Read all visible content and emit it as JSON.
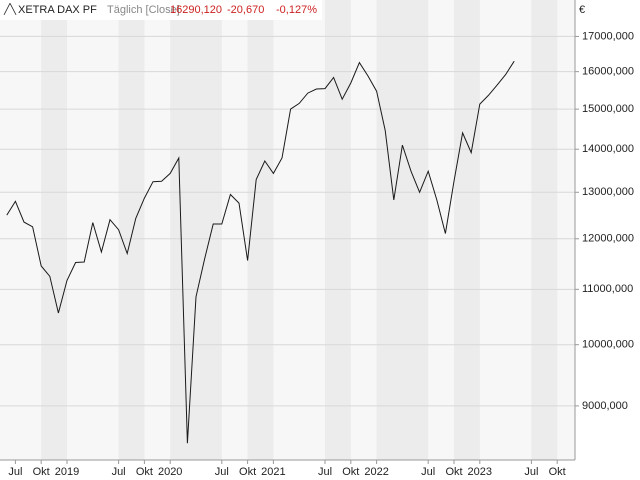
{
  "chart_data": {
    "type": "line",
    "title": "XETRA DAX PF",
    "subtitle": "Täglich [Close]",
    "header_values": [
      "16290,120",
      "-20,670",
      "-0,127%"
    ],
    "y_unit": "€",
    "log_scale": true,
    "grid": true,
    "x": [
      "2018-06",
      "2018-07",
      "2018-08",
      "2018-09",
      "2018-10",
      "2018-11",
      "2018-12",
      "2019-01",
      "2019-02",
      "2019-03",
      "2019-04",
      "2019-05",
      "2019-06",
      "2019-07",
      "2019-08",
      "2019-09",
      "2019-10",
      "2019-11",
      "2019-12",
      "2020-01",
      "2020-02",
      "2020-03",
      "2020-04",
      "2020-05",
      "2020-06",
      "2020-07",
      "2020-08",
      "2020-09",
      "2020-10",
      "2020-11",
      "2020-12",
      "2021-01",
      "2021-02",
      "2021-03",
      "2021-04",
      "2021-05",
      "2021-06",
      "2021-07",
      "2021-08",
      "2021-09",
      "2021-10",
      "2021-11",
      "2021-12",
      "2022-01",
      "2022-02",
      "2022-03",
      "2022-04",
      "2022-05",
      "2022-06",
      "2022-07",
      "2022-08",
      "2022-09",
      "2022-10",
      "2022-11",
      "2022-12",
      "2023-01",
      "2023-02",
      "2023-03",
      "2023-04",
      "2023-05"
    ],
    "series": [
      {
        "name": "XETRA DAX PF",
        "color": "#1a1a1a",
        "values": [
          12500,
          12800,
          12350,
          12250,
          11450,
          11250,
          10560,
          11170,
          11520,
          11530,
          12340,
          11730,
          12400,
          12190,
          11700,
          12430,
          12870,
          13240,
          13250,
          13430,
          13790,
          8440,
          10860,
          11590,
          12310,
          12310,
          12950,
          12760,
          11560,
          13290,
          13720,
          13430,
          13790,
          15000,
          15150,
          15420,
          15530,
          15540,
          15840,
          15260,
          15690,
          16250,
          15880,
          15470,
          14460,
          12830,
          14100,
          13480,
          13000,
          13480,
          12830,
          12110,
          13250,
          14400,
          13920,
          15130,
          15360,
          15630,
          15920,
          16290
        ]
      }
    ],
    "ylim": [
      8200,
      18100
    ],
    "yticks": [
      {
        "value": 9000,
        "label": "9000,000"
      },
      {
        "value": 10000,
        "label": "10000,000"
      },
      {
        "value": 11000,
        "label": "11000,000"
      },
      {
        "value": 12000,
        "label": "12000,000"
      },
      {
        "value": 13000,
        "label": "13000,000"
      },
      {
        "value": 14000,
        "label": "14000,000"
      },
      {
        "value": 15000,
        "label": "15000,000"
      },
      {
        "value": 16000,
        "label": "16000,000"
      },
      {
        "value": 17000,
        "label": "17000,000"
      }
    ],
    "xticks": [
      {
        "value": "2018-07",
        "label": "Jul"
      },
      {
        "value": "2018-10",
        "label": "Okt"
      },
      {
        "value": "2019-01",
        "label": "2019"
      },
      {
        "value": "2019-07",
        "label": "Jul"
      },
      {
        "value": "2019-10",
        "label": "Okt"
      },
      {
        "value": "2020-01",
        "label": "2020"
      },
      {
        "value": "2020-07",
        "label": "Jul"
      },
      {
        "value": "2020-10",
        "label": "Okt"
      },
      {
        "value": "2021-01",
        "label": "2021"
      },
      {
        "value": "2021-07",
        "label": "Jul"
      },
      {
        "value": "2021-10",
        "label": "Okt"
      },
      {
        "value": "2022-01",
        "label": "2022"
      },
      {
        "value": "2022-07",
        "label": "Jul"
      },
      {
        "value": "2022-10",
        "label": "Okt"
      },
      {
        "value": "2023-01",
        "label": "2023"
      },
      {
        "value": "2023-07",
        "label": "Jul"
      },
      {
        "value": "2023-10",
        "label": "Okt"
      }
    ]
  }
}
